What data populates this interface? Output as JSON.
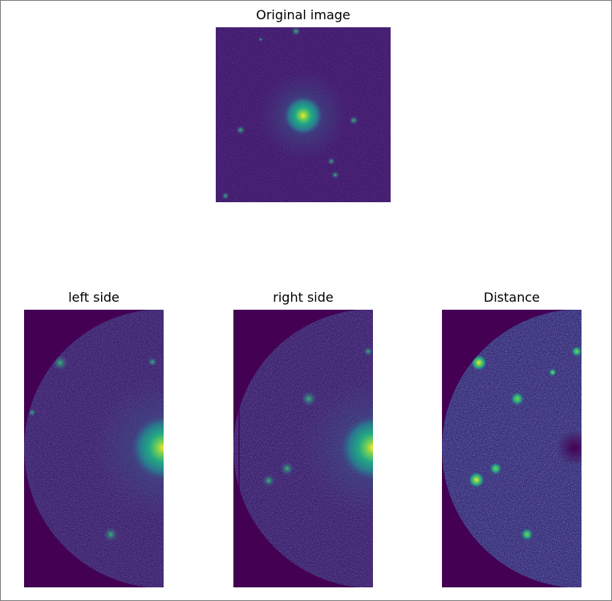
{
  "figure": {
    "panels": [
      {
        "key": "original",
        "title": "Original image"
      },
      {
        "key": "left",
        "title": "left side"
      },
      {
        "key": "right",
        "title": "right side"
      },
      {
        "key": "distance",
        "title": "Distance"
      }
    ]
  },
  "colors": {
    "background_dark": "#440154",
    "noise_mid": "#3b2b7a",
    "blob_cyan": "#21a38a",
    "blob_green": "#7ad151",
    "peak_yellow": "#fde725"
  }
}
